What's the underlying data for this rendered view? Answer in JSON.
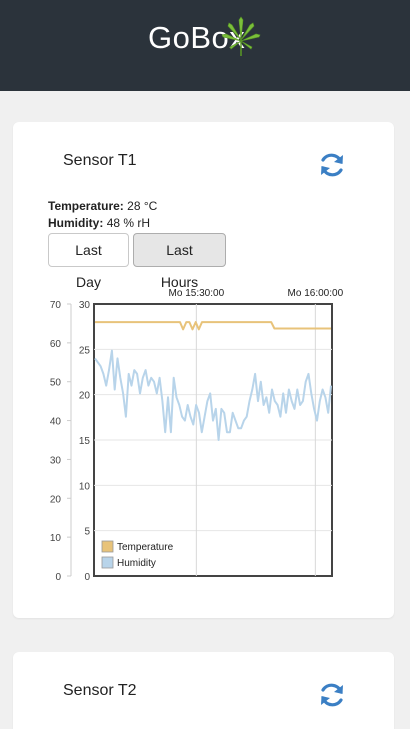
{
  "app": {
    "brand": "GoBox"
  },
  "sensors": [
    {
      "title": "Sensor T1",
      "temperature_label": "Temperature:",
      "temperature_value": "28 °C",
      "humidity_label": "Humidity:",
      "humidity_value": "48 % rH",
      "buttons": {
        "last_day": "Last Day",
        "last_hours": "Last Hours"
      }
    },
    {
      "title": "Sensor T2"
    }
  ],
  "icons": {
    "refresh": "refresh-icon",
    "logo": "cannabis-leaf-icon"
  },
  "colors": {
    "header": "#2b333b",
    "temperature": "#e8c37a",
    "humidity": "#b8d4ea",
    "accent": "#3b7fc4",
    "leaf": "#7bbf3b"
  },
  "chart_data": {
    "type": "line",
    "x_ticks": [
      "Mo 15:30:00",
      "Mo 16:00:00"
    ],
    "y_left": {
      "ticks": [
        0,
        10,
        20,
        30,
        40,
        50,
        60,
        70
      ],
      "range": [
        0,
        70
      ]
    },
    "y_right": {
      "ticks": [
        0,
        5,
        10,
        15,
        20,
        25,
        30
      ],
      "range": [
        0,
        30
      ]
    },
    "series": [
      {
        "name": "Temperature",
        "axis": "right",
        "color": "#e8c37a",
        "values": [
          28,
          28,
          28,
          28,
          28,
          28,
          28,
          28,
          28,
          28,
          28,
          28,
          28,
          28,
          28,
          28,
          28,
          28,
          28,
          28,
          28,
          28,
          28,
          28,
          28,
          28,
          28,
          28,
          27.2,
          28,
          28,
          27.2,
          28,
          27.2,
          28,
          28,
          28,
          28,
          28,
          28,
          28,
          28,
          28,
          28,
          28,
          28,
          28,
          28,
          28,
          28,
          28,
          28,
          28,
          28,
          28,
          28,
          28,
          27.3,
          27.3,
          27.3,
          27.3,
          27.3,
          27.3,
          27.3,
          27.3,
          27.3,
          27.3,
          27.3,
          27.3,
          27.3,
          27.3,
          27.3,
          27.3,
          27.3,
          27.3,
          27.3
        ]
      },
      {
        "name": "Humidity",
        "axis": "left",
        "color": "#b8d4ea",
        "values": [
          56,
          55,
          54,
          52,
          49,
          53,
          58,
          48,
          56,
          51,
          47,
          41,
          52,
          49,
          53,
          52,
          47,
          51,
          53,
          49,
          51,
          50,
          47,
          51,
          45,
          37,
          46,
          37,
          51,
          46,
          44,
          41,
          40,
          44,
          41,
          39,
          44,
          42,
          37,
          41,
          45,
          47,
          40,
          43,
          35,
          43,
          42,
          37,
          37,
          42,
          40,
          38,
          38,
          40,
          41,
          45,
          48,
          52,
          45,
          50,
          44,
          46,
          42,
          48,
          45,
          44,
          41,
          47,
          42,
          48,
          45,
          43,
          48,
          44,
          45,
          50,
          52,
          47,
          43,
          40,
          45,
          48,
          46,
          42,
          49
        ]
      }
    ]
  }
}
